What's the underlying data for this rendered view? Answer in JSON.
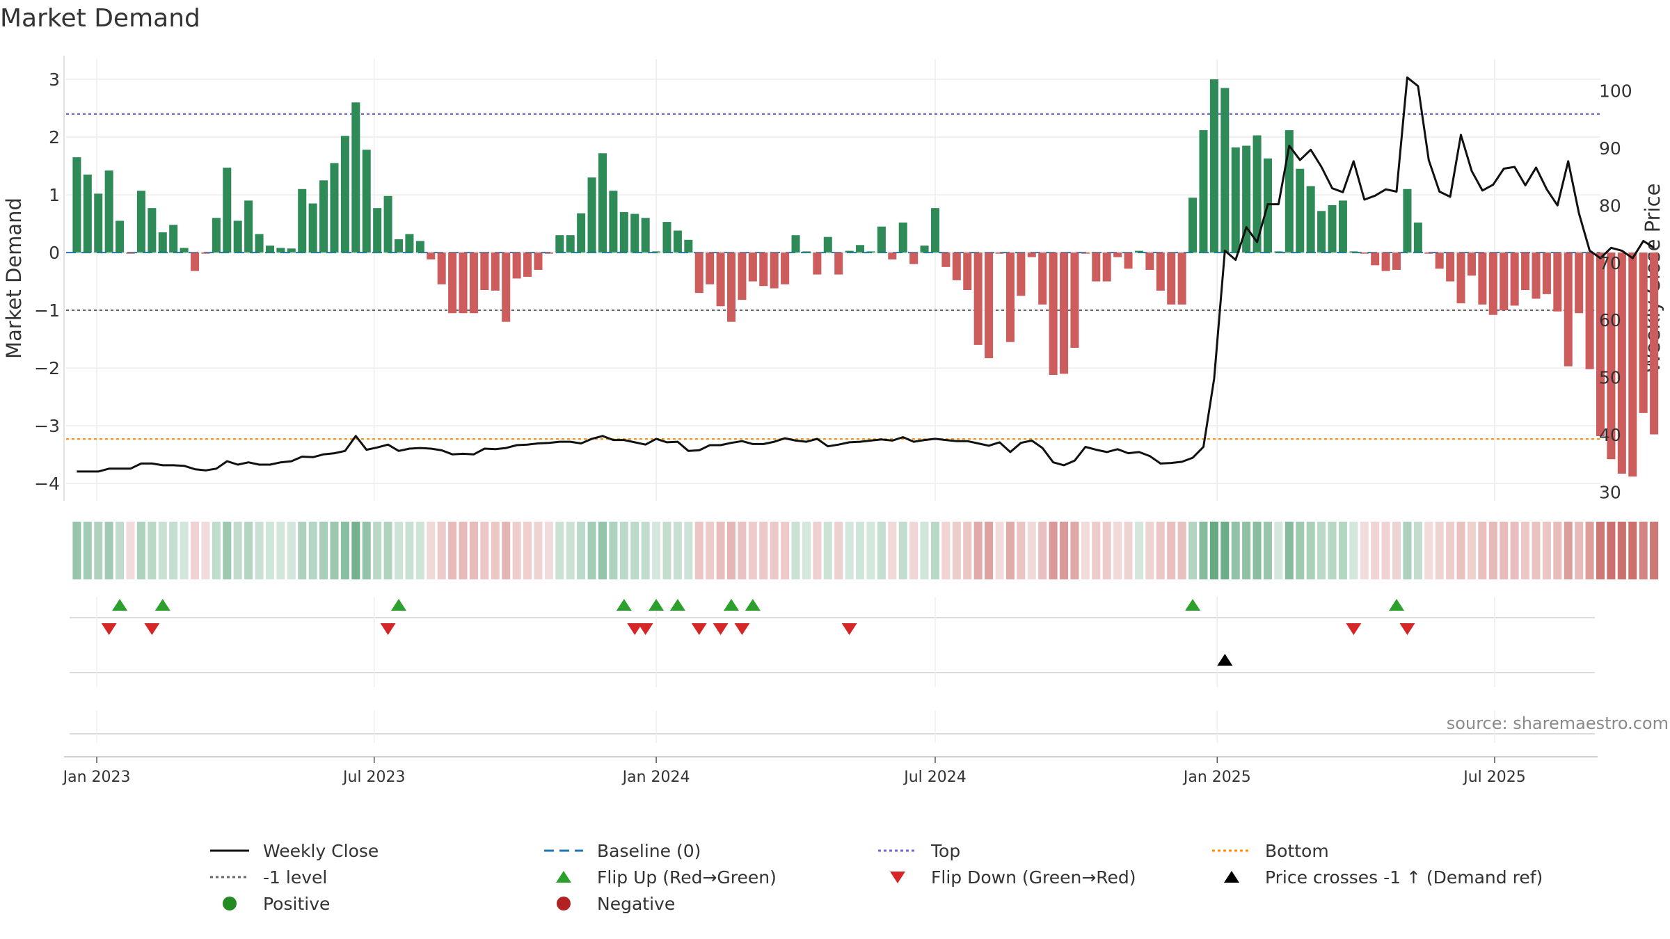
{
  "chart_data": {
    "type": "bar",
    "title": "Market Demand",
    "ylabel": "Market Demand",
    "y2label": "Weekly Close Price",
    "ylim": [
      -4.3,
      3.35
    ],
    "y2lim": [
      28.5,
      105.5
    ],
    "yticks": [
      "3",
      "2",
      "1",
      "0",
      "−1",
      "−2",
      "−3",
      "−4"
    ],
    "y2ticks": [
      "100",
      "90",
      "80",
      "70",
      "60",
      "50",
      "40",
      "30"
    ],
    "x_range": [
      "2022-12-12",
      "2025-09-08"
    ],
    "x_ticks": [
      {
        "date": "2023-01-01",
        "label": "Jan 2023"
      },
      {
        "date": "2023-07-01",
        "label": "Jul 2023"
      },
      {
        "date": "2024-01-01",
        "label": "Jan 2024"
      },
      {
        "date": "2024-07-01",
        "label": "Jul 2024"
      },
      {
        "date": "2025-01-01",
        "label": "Jan 2025"
      },
      {
        "date": "2025-07-01",
        "label": "Jul 2025"
      }
    ],
    "first_week": "2022-12-19",
    "week_step_days": 7,
    "reference_lines": {
      "baseline": 0,
      "top": 2.4,
      "minus_one": -1,
      "bottom": -3.23
    },
    "grid": true,
    "source": "source: sharemaestro.com",
    "demand": [
      1.65,
      1.35,
      1.02,
      1.42,
      0.55,
      -0.02,
      1.07,
      0.77,
      0.35,
      0.48,
      0.08,
      -0.32,
      -0.02,
      0.6,
      1.47,
      0.55,
      0.9,
      0.32,
      0.12,
      0.08,
      0.07,
      1.1,
      0.85,
      1.25,
      1.55,
      2.02,
      2.6,
      1.78,
      0.77,
      0.98,
      0.23,
      0.32,
      0.2,
      -0.12,
      -0.55,
      -1.05,
      -1.05,
      -1.05,
      -0.65,
      -0.66,
      -1.2,
      -0.45,
      -0.42,
      -0.3,
      -0.02,
      0.3,
      0.3,
      0.68,
      1.3,
      1.72,
      1.07,
      0.7,
      0.67,
      0.6,
      0.02,
      0.53,
      0.38,
      0.22,
      -0.7,
      -0.55,
      -0.93,
      -1.2,
      -0.82,
      -0.5,
      -0.58,
      -0.62,
      -0.55,
      0.3,
      0.02,
      -0.38,
      0.27,
      -0.38,
      0.03,
      0.13,
      0.02,
      0.45,
      -0.12,
      0.52,
      -0.2,
      0.12,
      0.77,
      -0.25,
      -0.48,
      -0.65,
      -1.6,
      -1.83,
      -0.02,
      -1.55,
      -0.75,
      -0.08,
      -0.9,
      -2.12,
      -2.1,
      -1.65,
      -0.02,
      -0.5,
      -0.5,
      -0.08,
      -0.28,
      0.03,
      -0.3,
      -0.66,
      -0.9,
      -0.9,
      0.95,
      2.12,
      3.0,
      2.85,
      1.82,
      1.85,
      2.03,
      1.63,
      0.02,
      2.12,
      1.45,
      1.15,
      0.72,
      0.82,
      0.9,
      0.02,
      -0.02,
      -0.22,
      -0.32,
      -0.3,
      1.1,
      0.52,
      -0.02,
      -0.28,
      -0.5,
      -0.88,
      -0.4,
      -0.9,
      -1.08,
      -1.0,
      -0.92,
      -0.65,
      -0.8,
      -0.72,
      -1.02,
      -1.97,
      -1.05,
      -2.02,
      -3.18,
      -3.58,
      -3.83,
      -3.88,
      -2.78,
      -3.15
    ],
    "close": [
      33.6,
      33.6,
      33.6,
      34.1,
      34.1,
      34.1,
      35.0,
      35.0,
      34.7,
      34.7,
      34.6,
      34.0,
      33.8,
      34.1,
      35.4,
      34.8,
      35.2,
      34.8,
      34.8,
      35.2,
      35.4,
      36.2,
      36.1,
      36.6,
      36.8,
      37.2,
      39.8,
      37.4,
      37.8,
      38.3,
      37.2,
      37.6,
      37.7,
      37.6,
      37.3,
      36.6,
      36.7,
      36.6,
      37.6,
      37.5,
      37.7,
      38.2,
      38.3,
      38.5,
      38.6,
      38.8,
      38.8,
      38.5,
      39.3,
      39.8,
      39.1,
      39.1,
      38.7,
      38.3,
      39.3,
      38.7,
      38.8,
      37.2,
      37.3,
      38.2,
      38.2,
      38.6,
      38.9,
      38.4,
      38.4,
      38.8,
      39.4,
      39.0,
      38.8,
      39.3,
      38.0,
      38.3,
      38.7,
      38.8,
      39.0,
      39.2,
      39.0,
      39.6,
      38.8,
      39.1,
      39.3,
      39.1,
      38.9,
      38.9,
      38.5,
      38.1,
      38.7,
      37.0,
      38.6,
      39.0,
      37.7,
      35.2,
      34.7,
      35.5,
      37.9,
      37.4,
      37.0,
      37.5,
      36.8,
      37.0,
      36.3,
      35.0,
      35.1,
      35.3,
      36.0,
      37.9,
      49.8,
      72.1,
      70.5,
      76.2,
      73.6,
      80.2,
      80.2,
      90.4,
      87.9,
      89.7,
      86.7,
      83.0,
      82.3,
      87.7,
      81.0,
      81.7,
      82.8,
      82.4,
      102.3,
      100.8,
      87.9,
      82.4,
      81.5,
      92.3,
      86.0,
      82.6,
      83.6,
      86.4,
      86.7,
      83.5,
      86.6,
      82.8,
      80.0,
      87.7,
      78.6,
      72.1,
      70.8,
      72.6,
      72.1,
      70.8,
      73.8,
      72.6
    ],
    "bar_colors": {
      "positive": "#2e8b57",
      "negative": "#cd5c5c"
    },
    "strip_colors": {
      "positive": "#2e8b57",
      "negative": "#c0504d"
    },
    "flip_up_weeks": [
      4,
      8,
      30,
      51,
      54,
      56,
      61,
      63,
      104,
      123
    ],
    "flip_down_weeks": [
      3,
      7,
      29,
      52,
      53,
      58,
      60,
      62,
      72,
      119,
      124
    ],
    "price_cross_weeks": [
      107
    ],
    "series": [
      {
        "name": "Weekly Close",
        "color": "#111111"
      },
      {
        "name": "Baseline (0)",
        "color": "#1f77b4"
      },
      {
        "name": "Top",
        "color": "#6a6ad0"
      },
      {
        "name": "Bottom",
        "color": "#ff8c00"
      },
      {
        "name": "-1 level",
        "color": "#666666"
      },
      {
        "name": "Flip Up (Red→Green)",
        "color": "#2ca02c"
      },
      {
        "name": "Flip Down (Green→Red)",
        "color": "#d62728"
      },
      {
        "name": "Price crosses -1 ↑ (Demand ref)",
        "color": "#000000"
      },
      {
        "name": "Positive",
        "color": "#228b22"
      },
      {
        "name": "Negative",
        "color": "#b22222"
      }
    ],
    "legend_position": "bottom"
  }
}
